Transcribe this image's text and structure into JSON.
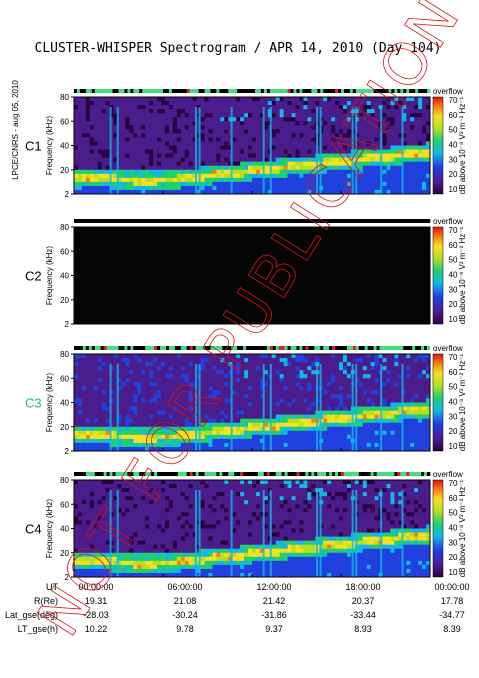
{
  "chart_data": {
    "type": "heatmap",
    "title": "CLUSTER-WHISPER Spectrogram / APR 14, 2010 (Day 104)",
    "side_label": "LPCE/CNRS - aug 05, 2010",
    "watermark": "NOT FOR PUBLICATION",
    "watermark_color": "#dd1111",
    "ylabel": "Frequency (kHz)",
    "ylim": [
      2,
      80
    ],
    "yticks": [
      "80",
      "60",
      "40",
      "20",
      "2"
    ],
    "colorbar": {
      "header": "overflow",
      "label": "dB above 10⁻⁸ V² m⁻² Hz⁻¹",
      "ticks": [
        "70",
        "60",
        "50",
        "40",
        "30",
        "20",
        "10"
      ],
      "range": [
        10,
        70
      ]
    },
    "panels": [
      {
        "name": "C1",
        "color": "#000000",
        "has_data": true
      },
      {
        "name": "C2",
        "color": "#000000",
        "has_data": false
      },
      {
        "name": "C3",
        "color": "#22bb88",
        "has_data": true
      },
      {
        "name": "C4",
        "color": "#000000",
        "has_data": true
      }
    ],
    "x_ticks": [
      "00:00:00",
      "06:00:00",
      "12:00:00",
      "18:00:00",
      "00:00:00"
    ],
    "ephemeris": [
      {
        "label": "UT",
        "values": [
          "00:00:00",
          "06:00:00",
          "12:00:00",
          "18:00:00",
          "00:00:00"
        ]
      },
      {
        "label": "R(Re)",
        "values": [
          "19.31",
          "21.08",
          "21.42",
          "20.37",
          "17.78"
        ]
      },
      {
        "label": "Lat_gse(deg)",
        "values": [
          "-28.03",
          "-30.24",
          "-31.86",
          "-33.44",
          "-34.77"
        ]
      },
      {
        "label": "LT_gse(h)",
        "values": [
          "10.22",
          "9.78",
          "9.37",
          "8.93",
          "8.39"
        ]
      }
    ]
  }
}
